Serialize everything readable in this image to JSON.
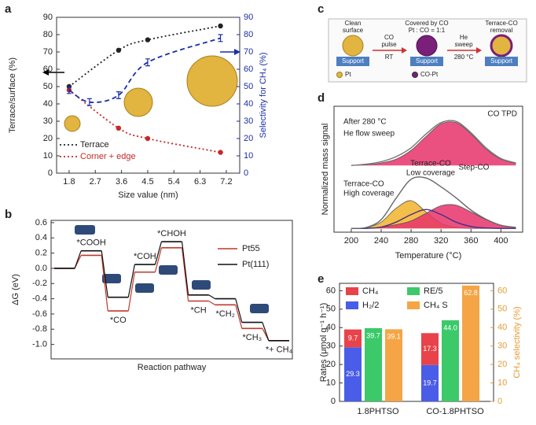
{
  "chart_data": [
    {
      "type": "line",
      "panel": "a",
      "xlabel": "Size value (nm)",
      "ylabel": "Terrace/surface (%)",
      "y2label": "Selectivity for CH₄ (%)",
      "x": [
        1.8,
        3.5,
        4.5,
        7.0
      ],
      "xlim": [
        1.37,
        7.66
      ],
      "xticks": [
        1.8,
        2.7,
        3.6,
        4.5,
        5.4,
        6.3,
        7.2
      ],
      "ylim": [
        0,
        90
      ],
      "yticks": [
        0,
        10,
        20,
        30,
        40,
        50,
        60,
        70,
        80,
        90
      ],
      "y2lim": [
        0,
        90
      ],
      "y2ticks": [
        0,
        10,
        20,
        30,
        40,
        50,
        60,
        70,
        80,
        90
      ],
      "y2color": "#1a2fa8",
      "legend": "lower left",
      "series": [
        {
          "name": "Terrace",
          "color": "#222222",
          "linestyle": "dotted",
          "values": [
            50,
            71,
            77,
            85
          ]
        },
        {
          "name": "Corner + edge",
          "color": "#c62828",
          "linestyle": "dotted",
          "values": [
            48,
            26,
            20,
            12
          ]
        },
        {
          "color": "#1a2fa8",
          "linestyle": "dashed",
          "axis": "y2",
          "x": [
            1.8,
            2.5,
            3.5,
            4.5,
            7.0
          ],
          "values": [
            48,
            41,
            45,
            64,
            78
          ],
          "errors": [
            2,
            2,
            2,
            2,
            2
          ]
        }
      ]
    },
    {
      "type": "step",
      "panel": "b",
      "ylabel": "ΔG (eV)",
      "xlabel": "Reaction pathway",
      "legend": "upper right",
      "categories": [
        null,
        "*COOH",
        "*CO",
        "*COH",
        "*CHOH",
        "*CH",
        "*CH₂",
        "*CH₃",
        "*+ CH₄"
      ],
      "ylim": [
        -1.19,
        0.63
      ],
      "yticks": [
        0.6,
        0.4,
        0.2,
        {
          "value": 0,
          "label": "0.0"
        },
        -0.2,
        -0.4,
        -0.6,
        -0.8,
        {
          "value": -1,
          "label": "-1.0"
        }
      ],
      "series": [
        {
          "name": "Pt55",
          "color": "#c0392b",
          "values": [
            0,
            0.17,
            -0.56,
            -0.05,
            0.27,
            -0.43,
            -0.48,
            -0.79,
            -0.95
          ]
        },
        {
          "name": "Pt(111)",
          "color": "#111111",
          "values": [
            0,
            0.23,
            -0.38,
            0.05,
            0.35,
            -0.35,
            -0.4,
            -0.71,
            -0.95
          ]
        }
      ]
    },
    {
      "type": "area",
      "panel": "d",
      "xlabel": "Temperature (°C)",
      "ylabel": "Normalized mass signal",
      "x": [
        200,
        220,
        240,
        260,
        280,
        300,
        320,
        340,
        360,
        380,
        400,
        420
      ],
      "xlim": [
        177,
        429
      ],
      "xticks": [
        200,
        240,
        280,
        320,
        360,
        400
      ],
      "ylim": [
        0,
        10
      ],
      "annotations": [
        "After 280 °C",
        "He flow sweep",
        "CO TPD",
        "Terrace-CO",
        "Low coverage",
        "Step-CO",
        "Terrace-CO",
        "High coverage"
      ],
      "series": [
        {
          "color": "#e8336a",
          "fill": true,
          "values": [
            5.3,
            5.35,
            5.5,
            5.8,
            6.5,
            7.6,
            8.6,
            8.7,
            7.8,
            6.6,
            5.8,
            5.45
          ]
        },
        {
          "color": "#777777",
          "fill": false,
          "values": [
            5.3,
            5.4,
            5.6,
            6.0,
            6.7,
            7.8,
            8.7,
            8.8,
            7.9,
            6.7,
            5.85,
            5.5
          ]
        },
        {
          "color": "#f2b32a",
          "fill": true,
          "values": [
            0.3,
            0.35,
            0.8,
            1.9,
            2.5,
            1.6,
            0.7,
            0.38,
            0.3,
            0.3,
            0.3,
            0.3
          ]
        },
        {
          "color": "#e8336a",
          "fill": true,
          "values": [
            0.3,
            0.32,
            0.4,
            0.6,
            0.9,
            1.5,
            2.1,
            2.15,
            1.6,
            1.0,
            0.55,
            0.38
          ]
        },
        {
          "color": "#4a2d82",
          "fill": false,
          "values": [
            0.3,
            0.3,
            0.4,
            0.8,
            1.4,
            1.8,
            1.4,
            0.8,
            0.45,
            0.33,
            0.3,
            0.3
          ]
        },
        {
          "color": "#666666",
          "fill": false,
          "values": [
            0.3,
            0.37,
            1.0,
            2.7,
            4.2,
            4.3,
            3.6,
            2.73,
            1.75,
            1.03,
            0.55,
            0.38
          ]
        }
      ]
    },
    {
      "type": "bar",
      "panel": "e",
      "ylabel": "Rates (μmol g⁻¹ h⁻¹)",
      "y2label": "CH₄ selectivity (%)",
      "categories": [
        "1.8PHTSO",
        "CO-1.8PHTSO"
      ],
      "ylim": [
        0,
        64
      ],
      "yticks": [
        0,
        10,
        20,
        30,
        40,
        50,
        60
      ],
      "y2lim": [
        0,
        64
      ],
      "y2ticks": [
        0,
        10,
        20,
        30,
        40,
        50,
        60
      ],
      "y2color": "#e89a30",
      "legend": "upper left",
      "series": [
        {
          "name": "H₂/2",
          "color": "#4a5de8",
          "stack": true,
          "values": [
            29.3,
            19.7
          ]
        },
        {
          "name": "CH₄",
          "color": "#e8434a",
          "stack": true,
          "values": [
            9.7,
            17.3
          ]
        },
        {
          "name": "RE/5",
          "color": "#3cc96a",
          "values": [
            39.7,
            44.0
          ],
          "value_labels": [
            "39.7",
            "44.0"
          ]
        },
        {
          "name": "CH₄ S",
          "color": "#f5a545",
          "axis": "y2",
          "values": [
            39.1,
            62.8
          ]
        }
      ]
    }
  ],
  "diagram": {
    "panel": "c",
    "steps": [
      {
        "title": [
          "Clean",
          "surface"
        ],
        "base": "Support"
      },
      {
        "title": [
          "Covered by CO",
          "Pt : CO = 1:1"
        ],
        "base": "Support"
      },
      {
        "title": [
          "Terrace-CO",
          "removal"
        ],
        "base": "Support"
      }
    ],
    "arrows": [
      {
        "top": [
          "CO",
          "pulse"
        ],
        "bottom": "RT"
      },
      {
        "top": [
          "He",
          "sweep"
        ],
        "bottom": "280 °C"
      }
    ],
    "legend": [
      "Pt",
      "CO-Pt"
    ]
  }
}
